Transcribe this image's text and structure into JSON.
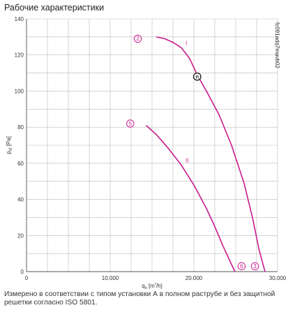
{
  "page": {
    "title": "Рабочие характеристики",
    "caption": "Измерено в соответствии с типом установки А в полном раструбе и без защитной решетки согласно ISO 5801."
  },
  "chart_data": {
    "type": "line",
    "xlabel": "q_v [m³/h]",
    "ylabel": "p_sf [Pa]",
    "xlim": [
      0,
      30000
    ],
    "ylim": [
      0,
      140
    ],
    "x_ticks": [
      {
        "value": 0,
        "label": "0"
      },
      {
        "value": 10000,
        "label": "10.000"
      },
      {
        "value": 20000,
        "label": "20.000"
      },
      {
        "value": 30000,
        "label": "30.000"
      }
    ],
    "y_ticks": [
      {
        "value": 0,
        "label": "0"
      },
      {
        "value": 20,
        "label": "20"
      },
      {
        "value": 40,
        "label": "40"
      },
      {
        "value": 60,
        "label": "60"
      },
      {
        "value": 80,
        "label": "80"
      },
      {
        "value": 100,
        "label": "100"
      },
      {
        "value": 120,
        "label": "120"
      },
      {
        "value": 140,
        "label": "140"
      }
    ],
    "grid": true,
    "series": [
      {
        "name": "I",
        "color": "#c8198c",
        "x": [
          15500,
          16500,
          17500,
          18500,
          19500,
          20400,
          21500,
          23000,
          24500,
          26000,
          27000,
          27800,
          28500
        ],
        "y": [
          130,
          129,
          127,
          124,
          118,
          109,
          100,
          87,
          70,
          49,
          30,
          12,
          0
        ]
      },
      {
        "name": "II",
        "color": "#c8198c",
        "x": [
          14300,
          15500,
          17000,
          18500,
          20000,
          21500,
          22500,
          23500,
          24300,
          24900
        ],
        "y": [
          81,
          76,
          68,
          59,
          48,
          35,
          25,
          14,
          6,
          0
        ]
      }
    ],
    "markers": [
      {
        "label": "2",
        "x": 13300,
        "y": 129,
        "style": "circle"
      },
      {
        "label": "5",
        "x": 12400,
        "y": 82,
        "style": "circle"
      },
      {
        "label": "6",
        "x": 25700,
        "y": 3,
        "style": "circle"
      },
      {
        "label": "3",
        "x": 27300,
        "y": 3,
        "style": "circle"
      },
      {
        "label": "n",
        "x": 20400,
        "y": 108,
        "style": "operating-point"
      }
    ],
    "code_label": "fc091adq7mavb02"
  }
}
